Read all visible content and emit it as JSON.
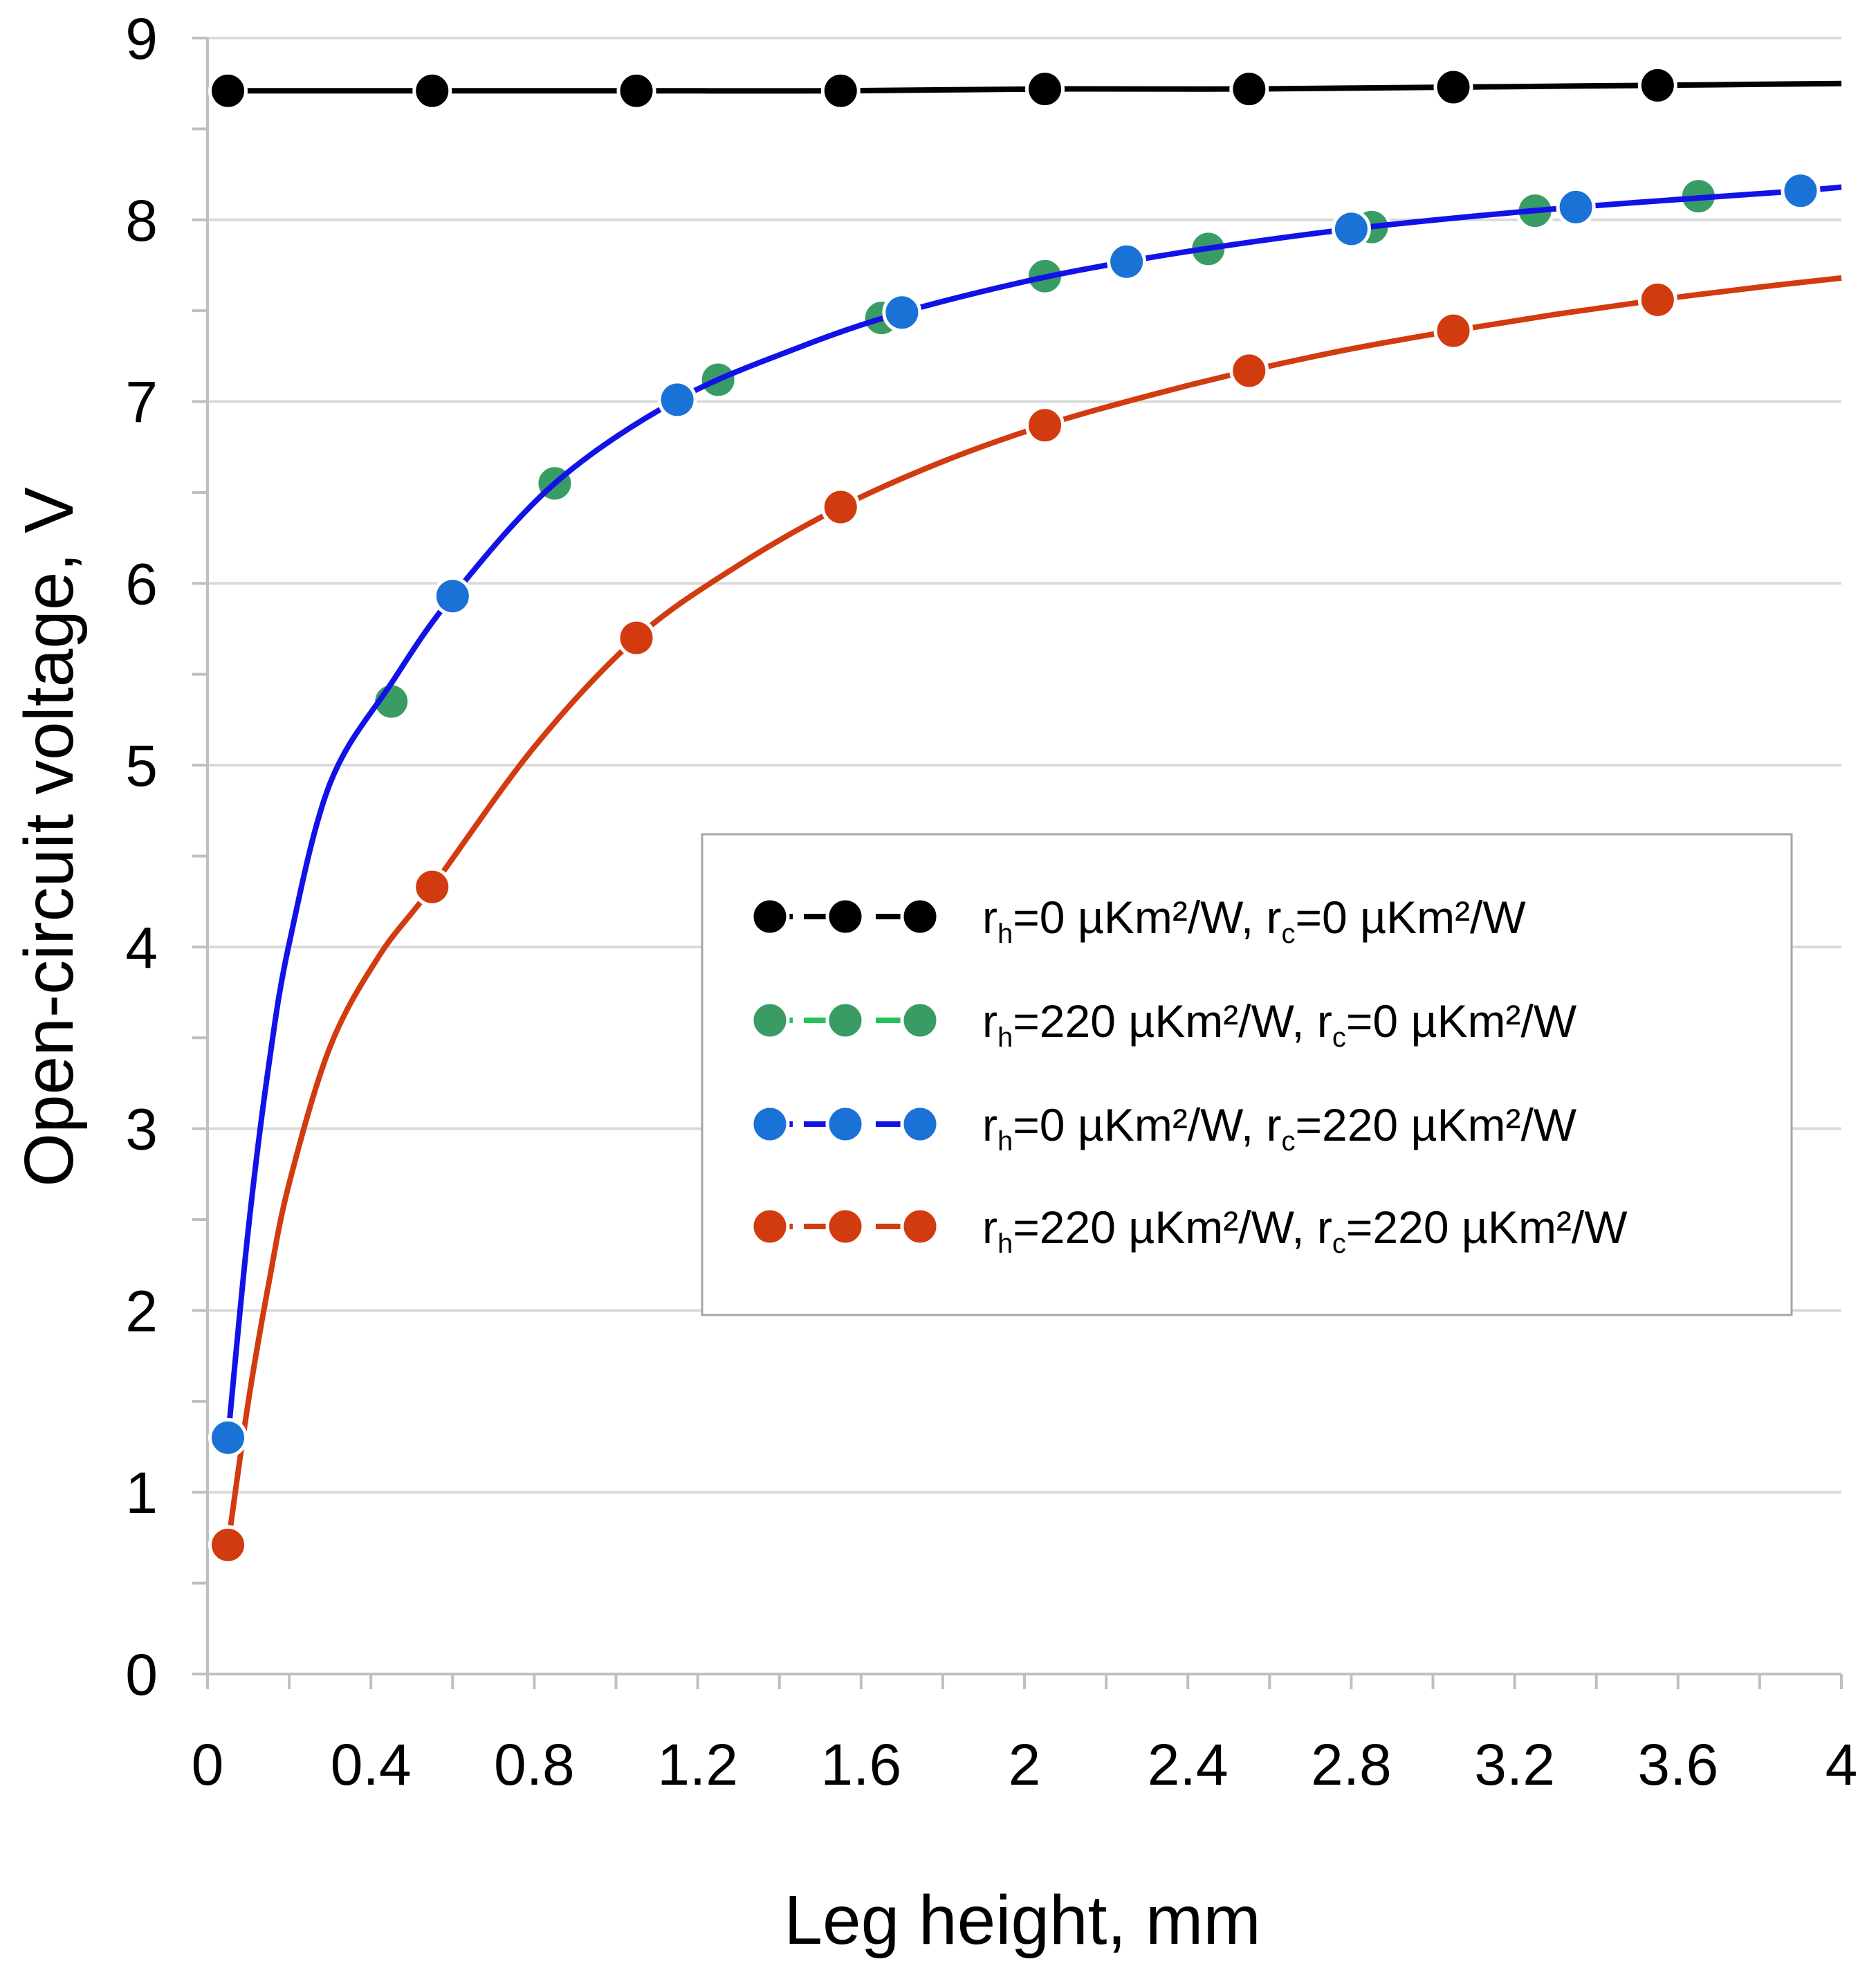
{
  "chart_data": {
    "type": "line",
    "title": "",
    "xlabel": "Leg height, mm",
    "ylabel": "Open-circuit voltage, V",
    "xlim": [
      0,
      4
    ],
    "ylim": [
      0,
      9
    ],
    "x_ticks": [
      0,
      0.4,
      0.8,
      1.2,
      1.6,
      2,
      2.4,
      2.8,
      3.2,
      3.6,
      4
    ],
    "x_tick_labels": [
      "0",
      "0.4",
      "0.8",
      "1.2",
      "1.6",
      "2",
      "2.4",
      "2.8",
      "3.2",
      "3.6",
      "4"
    ],
    "y_ticks": [
      0,
      1,
      2,
      3,
      4,
      5,
      6,
      7,
      8,
      9
    ],
    "y_tick_labels": [
      "0",
      "1",
      "2",
      "3",
      "4",
      "5",
      "6",
      "7",
      "8",
      "9"
    ],
    "grid": "horizontal",
    "legend_position": "center-right",
    "series": [
      {
        "name": "rh=0 µKm²/W, rc=0 µKm²/W",
        "legend": {
          "a": "r",
          "a_sub": "h",
          "b": "=0 µKm²/W, r",
          "b_sub": "c",
          "c": "=0 µKm²/W"
        },
        "color": "#000000",
        "markers_x": [
          0.05,
          0.55,
          1.05,
          1.55,
          2.05,
          2.55,
          3.05,
          3.55
        ],
        "markers_y": [
          8.71,
          8.71,
          8.71,
          8.71,
          8.72,
          8.72,
          8.73,
          8.74
        ],
        "curve_x": [
          0.05,
          0.55,
          1.05,
          1.55,
          2.05,
          2.55,
          3.05,
          3.55,
          4.0
        ],
        "curve_y": [
          8.71,
          8.71,
          8.71,
          8.71,
          8.72,
          8.72,
          8.73,
          8.74,
          8.75
        ]
      },
      {
        "name": "rh=220 µKm²/W, rc=0 µKm²/W",
        "legend": {
          "a": "r",
          "a_sub": "h",
          "b": "=220 µKm²/W, r",
          "b_sub": "c",
          "c": "=0 µKm²/W"
        },
        "color": "#3a9c65",
        "markers_x": [
          0.45,
          0.85,
          1.25,
          1.65,
          2.05,
          2.45,
          2.85,
          3.25,
          3.65
        ],
        "markers_y": [
          5.35,
          6.55,
          7.12,
          7.46,
          7.69,
          7.84,
          7.96,
          8.05,
          8.13
        ],
        "curve_x": [],
        "curve_y": []
      },
      {
        "name": "rh=0 µKm²/W, rc=220 µKm²/W",
        "legend": {
          "a": "r",
          "a_sub": "h",
          "b": "=0 µKm²/W, r",
          "b_sub": "c",
          "c": "=220 µKm²/W"
        },
        "color": "#1a72d6",
        "line_color": "#1212e8",
        "markers_x": [
          0.05,
          0.6,
          1.15,
          1.7,
          2.25,
          2.8,
          3.35,
          3.9
        ],
        "markers_y": [
          1.3,
          5.93,
          7.01,
          7.49,
          7.77,
          7.95,
          8.07,
          8.16
        ],
        "curve_x": [
          0.05,
          0.1,
          0.15,
          0.2,
          0.3,
          0.45,
          0.6,
          0.85,
          1.15,
          1.45,
          1.7,
          2.0,
          2.25,
          2.5,
          2.8,
          3.1,
          3.35,
          3.65,
          3.9,
          4.0
        ],
        "curve_y": [
          1.3,
          2.45,
          3.35,
          4.02,
          4.9,
          5.45,
          5.93,
          6.55,
          7.01,
          7.3,
          7.49,
          7.66,
          7.77,
          7.86,
          7.95,
          8.02,
          8.07,
          8.12,
          8.16,
          8.18
        ]
      },
      {
        "name": "rh=220 µKm²/W, rc=220 µKm²/W",
        "legend": {
          "a": "r",
          "a_sub": "h",
          "b": "=220 µKm²/W, r",
          "b_sub": "c",
          "c": "=220 µKm²/W"
        },
        "color": "#d13b0f",
        "markers_x": [
          0.05,
          0.55,
          1.05,
          1.55,
          2.05,
          2.55,
          3.05,
          3.55
        ],
        "markers_y": [
          0.71,
          4.33,
          5.7,
          6.42,
          6.87,
          7.17,
          7.39,
          7.56
        ],
        "curve_x": [
          0.05,
          0.1,
          0.15,
          0.2,
          0.3,
          0.42,
          0.55,
          0.8,
          1.05,
          1.3,
          1.55,
          1.8,
          2.05,
          2.3,
          2.55,
          2.8,
          3.05,
          3.3,
          3.55,
          3.8,
          4.0
        ],
        "curve_y": [
          0.71,
          1.5,
          2.15,
          2.7,
          3.45,
          3.95,
          4.33,
          5.1,
          5.7,
          6.1,
          6.42,
          6.67,
          6.87,
          7.03,
          7.17,
          7.29,
          7.39,
          7.48,
          7.56,
          7.63,
          7.68
        ]
      }
    ]
  }
}
